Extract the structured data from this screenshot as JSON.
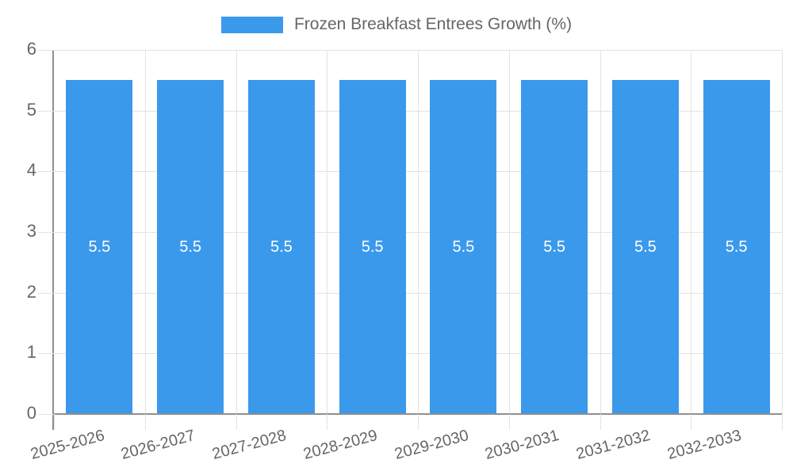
{
  "legend": {
    "label": "Frozen Breakfast Entrees Growth (%)"
  },
  "chart_data": {
    "type": "bar",
    "title": "Frozen Breakfast Entrees Growth (%)",
    "categories": [
      "2025-2026",
      "2026-2027",
      "2027-2028",
      "2028-2029",
      "2029-2030",
      "2030-2031",
      "2031-2032",
      "2032-2033"
    ],
    "series": [
      {
        "name": "Frozen Breakfast Entrees Growth (%)",
        "values": [
          5.5,
          5.5,
          5.5,
          5.5,
          5.5,
          5.5,
          5.5,
          5.5
        ]
      }
    ],
    "value_labels": [
      "5.5",
      "5.5",
      "5.5",
      "5.5",
      "5.5",
      "5.5",
      "5.5",
      "5.5"
    ],
    "xlabel": "",
    "ylabel": "",
    "ylim": [
      0,
      6
    ],
    "yticks": [
      0,
      1,
      2,
      3,
      4,
      5,
      6
    ],
    "grid": true,
    "legend_position": "top",
    "bar_label_position": "center",
    "x_label_rotation_deg": -15
  },
  "colors": {
    "bar": "#3B99EC",
    "bar_label": "#FFFFFF",
    "grid": "#E3E3E3",
    "axis": "#8F8F8F",
    "text": "#666666",
    "background": "#FFFFFF"
  }
}
